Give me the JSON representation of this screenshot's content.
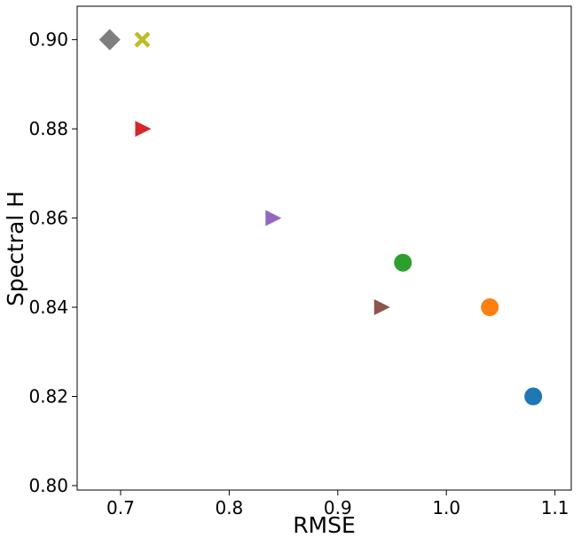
{
  "chart_data": {
    "type": "scatter",
    "title": "",
    "xlabel": "RMSE",
    "ylabel": "Spectral H",
    "xlim": [
      0.66,
      1.115
    ],
    "ylim": [
      0.799,
      0.9075
    ],
    "x_ticks": [
      0.7,
      0.8,
      0.9,
      1.0,
      1.1
    ],
    "x_tick_labels": [
      "0.7",
      "0.8",
      "0.9",
      "1.0",
      "1.1"
    ],
    "y_ticks": [
      0.8,
      0.82,
      0.84,
      0.86,
      0.88,
      0.9
    ],
    "y_tick_labels": [
      "0.80",
      "0.82",
      "0.84",
      "0.86",
      "0.88",
      "0.90"
    ],
    "grid": false,
    "legend": "none",
    "points": [
      {
        "x": 1.08,
        "y": 0.82,
        "marker": "circle",
        "color": "#1f77b4"
      },
      {
        "x": 1.04,
        "y": 0.84,
        "marker": "circle",
        "color": "#ff7f0e"
      },
      {
        "x": 0.96,
        "y": 0.85,
        "marker": "circle",
        "color": "#2ca02c"
      },
      {
        "x": 0.72,
        "y": 0.88,
        "marker": "triangle-right",
        "color": "#d62728"
      },
      {
        "x": 0.84,
        "y": 0.86,
        "marker": "triangle-right",
        "color": "#9467bd"
      },
      {
        "x": 0.94,
        "y": 0.84,
        "marker": "triangle-right",
        "color": "#8c564b"
      },
      {
        "x": 0.69,
        "y": 0.9,
        "marker": "diamond",
        "color": "#7f7f7f"
      },
      {
        "x": 0.72,
        "y": 0.9,
        "marker": "x-filled",
        "color": "#bcbd22"
      }
    ]
  }
}
